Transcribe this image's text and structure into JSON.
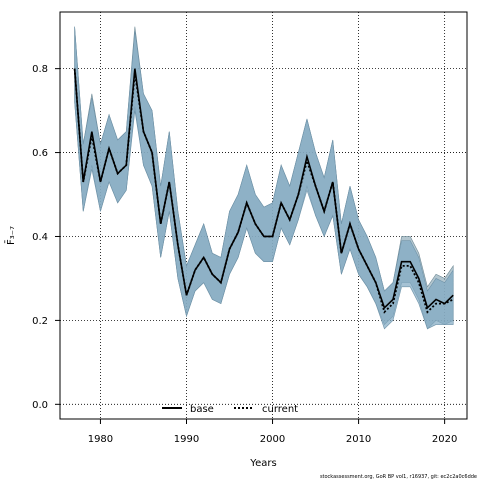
{
  "chart_data": {
    "type": "line",
    "xlabel": "Years",
    "ylabel": "F̄₃₋₇",
    "xlim": [
      1975.3,
      1978.3
    ],
    "ylim": [
      -0.035,
      0.935
    ],
    "x_ticks": [
      1980,
      1990,
      2000,
      2010,
      2020
    ],
    "x_tick_labels": [
      "1980",
      "1990",
      "2000",
      "2010",
      "2020"
    ],
    "y_ticks": [
      0.0,
      0.2,
      0.4,
      0.6,
      0.8
    ],
    "y_tick_labels": [
      "0.0",
      "0.2",
      "0.4",
      "0.6",
      "0.8"
    ],
    "grid": true,
    "legend_position": "bottom-center",
    "footnote": "stockassessment.org, GoR BP vol1, r16937, git: ec2c2a0c6dde",
    "colors": {
      "band": "#7fa8c2",
      "band_base": "#9ab3bf",
      "line": "#000000"
    },
    "x": [
      1977,
      1978,
      1979,
      1980,
      1981,
      1982,
      1983,
      1984,
      1985,
      1986,
      1987,
      1988,
      1989,
      1990,
      1991,
      1992,
      1993,
      1994,
      1995,
      1996,
      1997,
      1998,
      1999,
      2000,
      2001,
      2002,
      2003,
      2004,
      2005,
      2006,
      2007,
      2008,
      2009,
      2010,
      2011,
      2012,
      2013,
      2014,
      2015,
      2016,
      2017,
      2018,
      2019,
      2020,
      2021
    ],
    "series": [
      {
        "name": "base",
        "style": "solid",
        "values": [
          0.8,
          0.53,
          0.65,
          0.53,
          0.61,
          0.55,
          0.57,
          0.8,
          0.65,
          0.6,
          0.43,
          0.53,
          0.38,
          0.26,
          0.32,
          0.35,
          0.31,
          0.29,
          0.37,
          0.41,
          0.48,
          0.43,
          0.4,
          0.4,
          0.48,
          0.44,
          0.5,
          0.59,
          0.52,
          0.46,
          0.53,
          0.36,
          0.43,
          0.37,
          0.33,
          0.29,
          0.23,
          0.25,
          0.34,
          0.34,
          0.3,
          0.23,
          0.25,
          0.24,
          0.26
        ],
        "lower": [
          0.72,
          0.46,
          0.57,
          0.46,
          0.53,
          0.48,
          0.51,
          0.71,
          0.57,
          0.52,
          0.35,
          0.46,
          0.3,
          0.21,
          0.27,
          0.29,
          0.25,
          0.24,
          0.31,
          0.35,
          0.42,
          0.36,
          0.34,
          0.34,
          0.42,
          0.38,
          0.44,
          0.52,
          0.45,
          0.4,
          0.45,
          0.31,
          0.37,
          0.31,
          0.28,
          0.24,
          0.19,
          0.21,
          0.29,
          0.29,
          0.25,
          0.18,
          0.2,
          0.19,
          0.2
        ],
        "upper": [
          0.9,
          0.62,
          0.74,
          0.62,
          0.69,
          0.63,
          0.65,
          0.9,
          0.74,
          0.7,
          0.52,
          0.65,
          0.46,
          0.33,
          0.38,
          0.43,
          0.36,
          0.35,
          0.46,
          0.5,
          0.57,
          0.5,
          0.47,
          0.48,
          0.57,
          0.52,
          0.6,
          0.68,
          0.6,
          0.54,
          0.63,
          0.43,
          0.52,
          0.44,
          0.4,
          0.35,
          0.27,
          0.29,
          0.4,
          0.4,
          0.36,
          0.28,
          0.31,
          0.3,
          0.33
        ]
      },
      {
        "name": "current",
        "style": "dotted",
        "values": [
          0.8,
          0.53,
          0.64,
          0.53,
          0.61,
          0.55,
          0.57,
          0.79,
          0.65,
          0.6,
          0.43,
          0.53,
          0.38,
          0.26,
          0.32,
          0.35,
          0.31,
          0.29,
          0.37,
          0.41,
          0.48,
          0.43,
          0.4,
          0.4,
          0.48,
          0.44,
          0.5,
          0.58,
          0.52,
          0.46,
          0.53,
          0.36,
          0.43,
          0.37,
          0.33,
          0.29,
          0.22,
          0.24,
          0.33,
          0.33,
          0.29,
          0.22,
          0.24,
          0.24,
          0.25
        ],
        "lower": [
          0.72,
          0.46,
          0.56,
          0.46,
          0.53,
          0.48,
          0.51,
          0.7,
          0.57,
          0.52,
          0.35,
          0.46,
          0.3,
          0.21,
          0.27,
          0.29,
          0.25,
          0.24,
          0.31,
          0.35,
          0.42,
          0.36,
          0.34,
          0.34,
          0.42,
          0.38,
          0.44,
          0.51,
          0.45,
          0.4,
          0.45,
          0.31,
          0.37,
          0.31,
          0.28,
          0.24,
          0.18,
          0.2,
          0.28,
          0.28,
          0.24,
          0.18,
          0.19,
          0.19,
          0.19
        ],
        "upper": [
          0.9,
          0.62,
          0.73,
          0.62,
          0.69,
          0.63,
          0.65,
          0.89,
          0.74,
          0.7,
          0.52,
          0.65,
          0.46,
          0.33,
          0.38,
          0.43,
          0.36,
          0.35,
          0.46,
          0.5,
          0.57,
          0.5,
          0.47,
          0.48,
          0.57,
          0.52,
          0.6,
          0.68,
          0.6,
          0.54,
          0.63,
          0.43,
          0.52,
          0.44,
          0.4,
          0.35,
          0.27,
          0.29,
          0.39,
          0.39,
          0.35,
          0.27,
          0.3,
          0.29,
          0.32
        ]
      }
    ]
  }
}
